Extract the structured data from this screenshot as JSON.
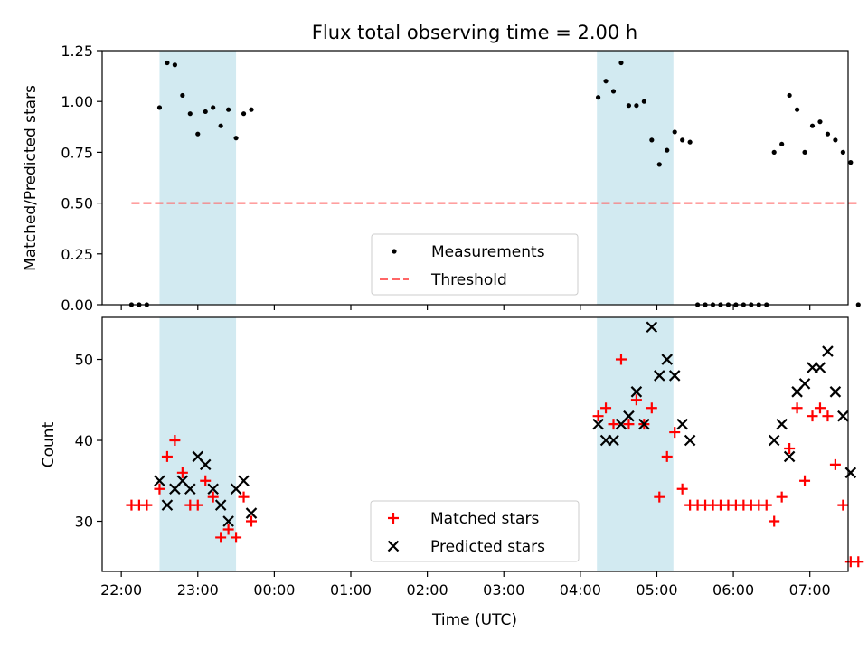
{
  "colors": {
    "shade": "#add8e6",
    "measurement": "#000000",
    "threshold": "#ff6666",
    "matched": "#ff0000",
    "predicted": "#000000"
  },
  "chart_data": [
    {
      "type": "scatter",
      "title": "Flux total observing time = 2.00 h",
      "xlabel": "",
      "ylabel": "Matched/Predicted stars",
      "xlim": [
        "21:45",
        "07:30"
      ],
      "ylim": [
        0,
        1.25
      ],
      "yticks": [
        "0.00",
        "0.25",
        "0.50",
        "0.75",
        "1.00",
        "1.25"
      ],
      "shaded_intervals": [
        [
          "22:30",
          "23:30"
        ],
        [
          "04:13",
          "05:13"
        ]
      ],
      "series": [
        {
          "name": "Measurements",
          "marker": "dot",
          "points": [
            [
              "22:08",
              0
            ],
            [
              "22:14",
              0
            ],
            [
              "22:20",
              0
            ],
            [
              "22:30",
              0.97
            ],
            [
              "22:36",
              1.19
            ],
            [
              "22:42",
              1.18
            ],
            [
              "22:48",
              1.03
            ],
            [
              "22:54",
              0.94
            ],
            [
              "23:00",
              0.84
            ],
            [
              "23:06",
              0.95
            ],
            [
              "23:12",
              0.97
            ],
            [
              "23:18",
              0.88
            ],
            [
              "23:24",
              0.96
            ],
            [
              "23:30",
              0.82
            ],
            [
              "23:36",
              0.94
            ],
            [
              "23:42",
              0.96
            ],
            [
              "04:14",
              1.02
            ],
            [
              "04:20",
              1.1
            ],
            [
              "04:26",
              1.05
            ],
            [
              "04:32",
              1.19
            ],
            [
              "04:38",
              0.98
            ],
            [
              "04:44",
              0.98
            ],
            [
              "04:50",
              1.0
            ],
            [
              "04:56",
              0.81
            ],
            [
              "05:02",
              0.69
            ],
            [
              "05:08",
              0.76
            ],
            [
              "05:14",
              0.85
            ],
            [
              "05:20",
              0.81
            ],
            [
              "05:26",
              0.8
            ],
            [
              "05:32",
              0
            ],
            [
              "05:38",
              0
            ],
            [
              "05:44",
              0
            ],
            [
              "05:50",
              0
            ],
            [
              "05:56",
              0
            ],
            [
              "06:02",
              0
            ],
            [
              "06:08",
              0
            ],
            [
              "06:14",
              0
            ],
            [
              "06:20",
              0
            ],
            [
              "06:26",
              0
            ],
            [
              "06:32",
              0.75
            ],
            [
              "06:38",
              0.79
            ],
            [
              "06:44",
              1.03
            ],
            [
              "06:50",
              0.96
            ],
            [
              "06:56",
              0.75
            ],
            [
              "07:02",
              0.88
            ],
            [
              "07:08",
              0.9
            ],
            [
              "07:14",
              0.84
            ],
            [
              "07:20",
              0.81
            ],
            [
              "07:26",
              0.75
            ],
            [
              "07:32",
              0.7
            ],
            [
              "07:38",
              0
            ]
          ]
        },
        {
          "name": "Threshold",
          "style": "dashed",
          "points": [
            [
              "22:08",
              0.5
            ],
            [
              "07:38",
              0.5
            ]
          ]
        }
      ],
      "legend": "lower center"
    },
    {
      "type": "scatter",
      "xlabel": "Time (UTC)",
      "ylabel": "Count",
      "xlim": [
        "21:45",
        "07:30"
      ],
      "ylim": [
        23.8,
        55.2
      ],
      "yticks": [
        "30",
        "40",
        "50"
      ],
      "xticks": [
        "22:00",
        "23:00",
        "00:00",
        "01:00",
        "02:00",
        "03:00",
        "04:00",
        "05:00",
        "06:00",
        "07:00"
      ],
      "shaded_intervals": [
        [
          "22:30",
          "23:30"
        ],
        [
          "04:13",
          "05:13"
        ]
      ],
      "series": [
        {
          "name": "Matched stars",
          "marker": "plus",
          "points": [
            [
              "22:08",
              32
            ],
            [
              "22:14",
              32
            ],
            [
              "22:20",
              32
            ],
            [
              "22:30",
              34
            ],
            [
              "22:36",
              38
            ],
            [
              "22:42",
              40
            ],
            [
              "22:48",
              36
            ],
            [
              "22:54",
              32
            ],
            [
              "23:00",
              32
            ],
            [
              "23:06",
              35
            ],
            [
              "23:12",
              33
            ],
            [
              "23:18",
              28
            ],
            [
              "23:24",
              29
            ],
            [
              "23:30",
              28
            ],
            [
              "23:36",
              33
            ],
            [
              "23:42",
              30
            ],
            [
              "04:14",
              43
            ],
            [
              "04:20",
              44
            ],
            [
              "04:26",
              42
            ],
            [
              "04:32",
              50
            ],
            [
              "04:38",
              42
            ],
            [
              "04:44",
              45
            ],
            [
              "04:50",
              42
            ],
            [
              "04:56",
              44
            ],
            [
              "05:02",
              33
            ],
            [
              "05:08",
              38
            ],
            [
              "05:14",
              41
            ],
            [
              "05:20",
              34
            ],
            [
              "05:26",
              32
            ],
            [
              "05:32",
              32
            ],
            [
              "05:38",
              32
            ],
            [
              "05:44",
              32
            ],
            [
              "05:50",
              32
            ],
            [
              "05:56",
              32
            ],
            [
              "06:02",
              32
            ],
            [
              "06:08",
              32
            ],
            [
              "06:14",
              32
            ],
            [
              "06:20",
              32
            ],
            [
              "06:26",
              32
            ],
            [
              "06:32",
              30
            ],
            [
              "06:38",
              33
            ],
            [
              "06:44",
              39
            ],
            [
              "06:50",
              44
            ],
            [
              "06:56",
              35
            ],
            [
              "07:02",
              43
            ],
            [
              "07:08",
              44
            ],
            [
              "07:14",
              43
            ],
            [
              "07:20",
              37
            ],
            [
              "07:26",
              32
            ],
            [
              "07:32",
              25
            ],
            [
              "07:38",
              25
            ]
          ]
        },
        {
          "name": "Predicted stars",
          "marker": "x",
          "points": [
            [
              "22:30",
              35
            ],
            [
              "22:36",
              32
            ],
            [
              "22:42",
              34
            ],
            [
              "22:48",
              35
            ],
            [
              "22:54",
              34
            ],
            [
              "23:00",
              38
            ],
            [
              "23:06",
              37
            ],
            [
              "23:12",
              34
            ],
            [
              "23:18",
              32
            ],
            [
              "23:24",
              30
            ],
            [
              "23:30",
              34
            ],
            [
              "23:36",
              35
            ],
            [
              "23:42",
              31
            ],
            [
              "04:14",
              42
            ],
            [
              "04:20",
              40
            ],
            [
              "04:26",
              40
            ],
            [
              "04:32",
              42
            ],
            [
              "04:38",
              43
            ],
            [
              "04:44",
              46
            ],
            [
              "04:50",
              42
            ],
            [
              "04:56",
              54
            ],
            [
              "05:02",
              48
            ],
            [
              "05:08",
              50
            ],
            [
              "05:14",
              48
            ],
            [
              "05:20",
              42
            ],
            [
              "05:26",
              40
            ],
            [
              "06:32",
              40
            ],
            [
              "06:38",
              42
            ],
            [
              "06:44",
              38
            ],
            [
              "06:50",
              46
            ],
            [
              "06:56",
              47
            ],
            [
              "07:02",
              49
            ],
            [
              "07:08",
              49
            ],
            [
              "07:14",
              51
            ],
            [
              "07:20",
              46
            ],
            [
              "07:26",
              43
            ],
            [
              "07:32",
              36
            ]
          ]
        }
      ],
      "legend": "lower center"
    }
  ]
}
